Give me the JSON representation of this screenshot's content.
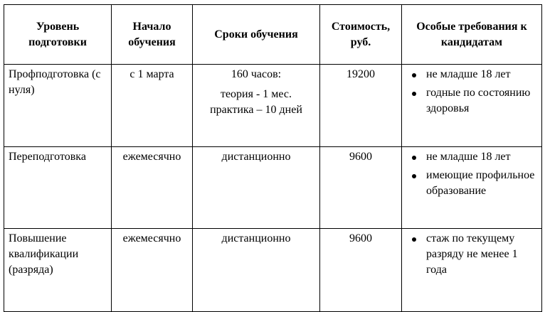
{
  "table": {
    "headers": [
      "Уровень подготовки",
      "Начало обучения",
      "Сроки обучения",
      "Стоимость, руб.",
      "Особые требования к кандидатам"
    ],
    "rows": [
      {
        "level": "Профподготовка (с нуля)",
        "start": "с 1 марта",
        "duration": {
          "line1": "160 часов:",
          "line2": "теория - 1 мес.",
          "line3": "практика – 10 дней"
        },
        "cost": "19200",
        "requirements": [
          "не младше 18 лет",
          "годные по состоянию здоровья"
        ]
      },
      {
        "level": "Переподготовка",
        "start": "ежемесячно",
        "duration": {
          "line1": "дистанционно"
        },
        "cost": "9600",
        "requirements": [
          "не младше 18 лет",
          "имеющие профильное образование"
        ]
      },
      {
        "level": "Повышение квалификации (разряда)",
        "start": "ежемесячно",
        "duration": {
          "line1": "дистанционно"
        },
        "cost": "9600",
        "requirements": [
          "стаж по текущему разряду не менее 1 года"
        ]
      }
    ]
  }
}
